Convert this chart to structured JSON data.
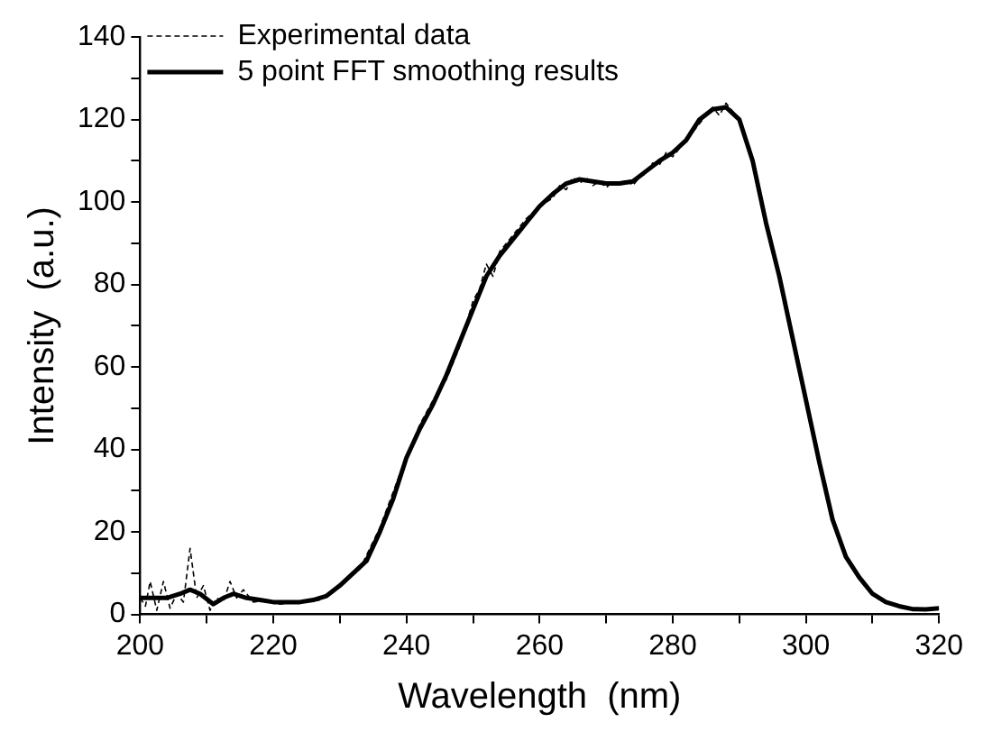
{
  "chart_data": {
    "type": "line",
    "xlabel": "Wavelength  (nm)",
    "ylabel": "Intensity  (a.u.)",
    "xlim": [
      200,
      320
    ],
    "ylim": [
      0,
      140
    ],
    "xticks": [
      200,
      {
        "value": 210,
        "label": null
      },
      220,
      {
        "value": 230,
        "label": null
      },
      240,
      {
        "value": 250,
        "label": null
      },
      260,
      {
        "value": 270,
        "label": null
      },
      280,
      {
        "value": 290,
        "label": null
      },
      300,
      {
        "value": 310,
        "label": null
      },
      320
    ],
    "yticks": [
      0,
      {
        "value": 10,
        "label": null
      },
      20,
      {
        "value": 30,
        "label": null
      },
      40,
      {
        "value": 50,
        "label": null
      },
      60,
      {
        "value": 70,
        "label": null
      },
      80,
      {
        "value": 90,
        "label": null
      },
      100,
      {
        "value": 110,
        "label": null
      },
      120,
      {
        "value": 130,
        "label": null
      },
      140
    ],
    "grid": false,
    "legend": "top left",
    "marker": "none",
    "series": [
      {
        "name": "Experimental data",
        "color": "#000000",
        "line_style": "dashed",
        "x": [
          200,
          200.8,
          201.5,
          202.5,
          203.5,
          204.5,
          205.5,
          206.5,
          207.5,
          208.5,
          209.5,
          210.5,
          211.5,
          212.5,
          213.5,
          214.5,
          215.5,
          217,
          219,
          221,
          224,
          227,
          230,
          233,
          236,
          239,
          242,
          244,
          246,
          248,
          250,
          251,
          252,
          253,
          254,
          256,
          258,
          260,
          262,
          263,
          264,
          265,
          266,
          267,
          268,
          269,
          270,
          271,
          272,
          273,
          274,
          275,
          276,
          277,
          278,
          279,
          280,
          282,
          284,
          286,
          287,
          288,
          289,
          290,
          292,
          294,
          296,
          298,
          300,
          302,
          304,
          306,
          308,
          310,
          312,
          314,
          316,
          318,
          320
        ],
        "values": [
          4,
          2,
          8,
          1,
          8,
          1.5,
          5,
          3,
          16,
          4,
          7,
          1,
          4,
          3,
          8,
          4,
          6,
          3,
          3.5,
          2.5,
          3,
          3.5,
          7,
          11,
          21,
          34,
          46,
          52,
          57,
          65,
          76,
          79,
          85,
          82,
          88,
          92,
          96,
          99,
          101,
          104,
          103,
          106,
          104.5,
          106,
          104,
          105,
          103.5,
          105,
          104,
          105.5,
          104,
          106,
          107,
          109.5,
          109,
          112,
          111,
          115,
          119,
          123,
          121,
          124,
          122,
          120,
          110,
          95,
          82,
          67,
          52,
          37,
          23,
          14,
          9,
          5,
          3,
          2,
          1.3,
          1.2,
          1.5
        ]
      },
      {
        "name": "5 point FFT smoothing results",
        "color": "#000000",
        "line_style": "solid",
        "x": [
          200,
          202,
          204,
          206,
          207.5,
          209,
          211,
          212.5,
          214,
          216,
          218,
          220,
          222,
          224,
          226,
          228,
          230,
          232,
          234,
          236,
          238,
          240,
          242,
          244,
          246,
          248,
          250,
          252,
          254,
          256,
          258,
          260,
          262,
          264,
          266,
          268,
          270,
          272,
          274,
          276,
          278,
          280,
          282,
          284,
          286,
          288,
          290,
          292,
          294,
          296,
          298,
          300,
          302,
          304,
          306,
          308,
          310,
          312,
          314,
          316,
          318,
          320
        ],
        "values": [
          4,
          4,
          4,
          5,
          6,
          5,
          2.5,
          4,
          5,
          4,
          3.5,
          3,
          3,
          3,
          3.5,
          4.5,
          7,
          10,
          13,
          20,
          28,
          38,
          45,
          51,
          58,
          66,
          74,
          82,
          87,
          91,
          95,
          99,
          102,
          104.5,
          105.5,
          105,
          104.5,
          104.5,
          105,
          107.5,
          110,
          112,
          115,
          120,
          122.5,
          123,
          120,
          110,
          95,
          82,
          67,
          52,
          37,
          23,
          14,
          9,
          5,
          3,
          2,
          1.3,
          1.2,
          1.5
        ]
      }
    ]
  }
}
